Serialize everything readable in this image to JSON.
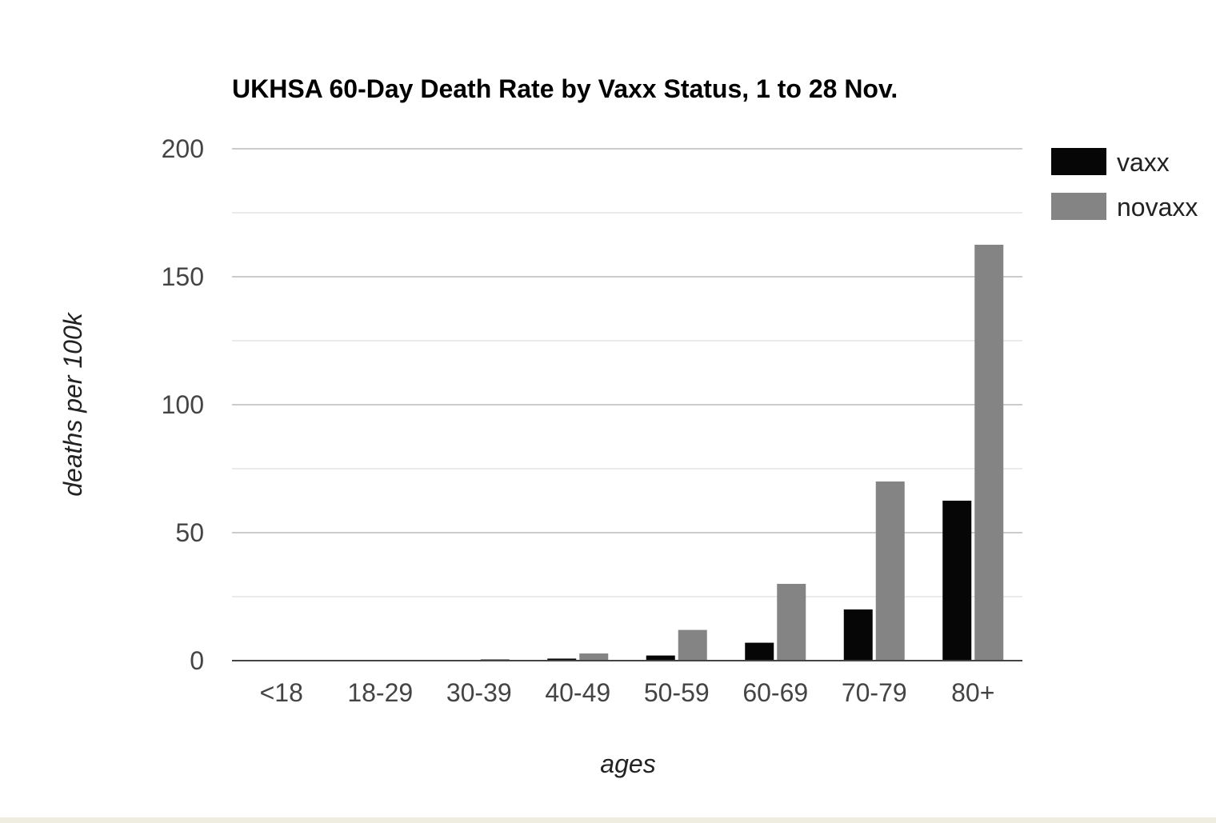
{
  "chart_data": {
    "type": "bar",
    "title": "UKHSA 60-Day Death Rate by Vaxx Status, 1 to 28 Nov.",
    "xlabel": "ages",
    "ylabel": "deaths per 100k",
    "categories": [
      "<18",
      "18-29",
      "30-39",
      "40-49",
      "50-59",
      "60-69",
      "70-79",
      "80+"
    ],
    "series": [
      {
        "name": "vaxx",
        "color": "#060606",
        "values": [
          0.0,
          0.1,
          0.2,
          0.8,
          2.0,
          7.0,
          20.0,
          62.5
        ]
      },
      {
        "name": "novaxx",
        "color": "#848484",
        "values": [
          0.0,
          0.2,
          0.6,
          2.8,
          12.0,
          30.0,
          70.0,
          162.5
        ]
      }
    ],
    "ylim": [
      0,
      200
    ],
    "yticks": [
      0,
      50,
      100,
      150,
      200
    ],
    "grid": true,
    "legend_position": "right"
  }
}
